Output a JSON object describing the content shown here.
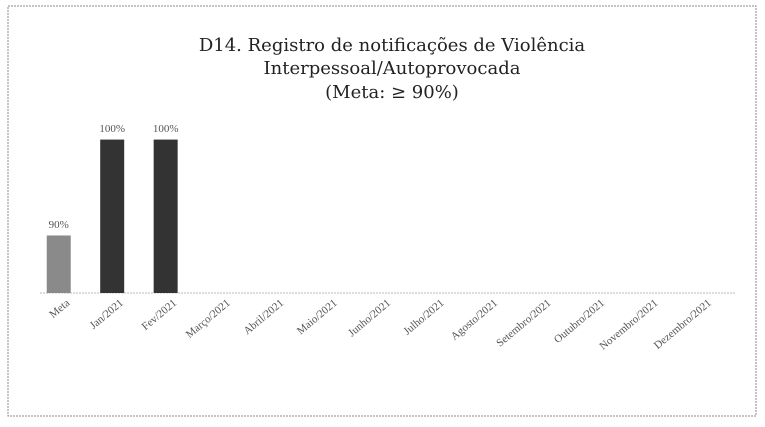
{
  "chart_data": {
    "type": "bar",
    "title": [
      "D14. Registro de notificações de Violência",
      "Interpessoal/Autoprovocada",
      "(Meta: ≥ 90%)"
    ],
    "categories": [
      "Meta",
      "Jan/2021",
      "Fev/2021",
      "Março/2021",
      "Abril/2021",
      "Maio/2021",
      "Junho/2021",
      "Julho/2021",
      "Agosto/2021",
      "Setembro/2021",
      "Outubro/2021",
      "Novembro/2021",
      "Dezembro/2021"
    ],
    "values": [
      90,
      100,
      100,
      null,
      null,
      null,
      null,
      null,
      null,
      null,
      null,
      null,
      null
    ],
    "value_labels": [
      "90%",
      "100%",
      "100%",
      null,
      null,
      null,
      null,
      null,
      null,
      null,
      null,
      null,
      null
    ],
    "colors": [
      "#8a8a8a",
      "#333333",
      "#333333",
      "#333333",
      "#333333",
      "#333333",
      "#333333",
      "#333333",
      "#333333",
      "#333333",
      "#333333",
      "#333333",
      "#333333"
    ],
    "ylim": [
      84,
      101
    ]
  }
}
